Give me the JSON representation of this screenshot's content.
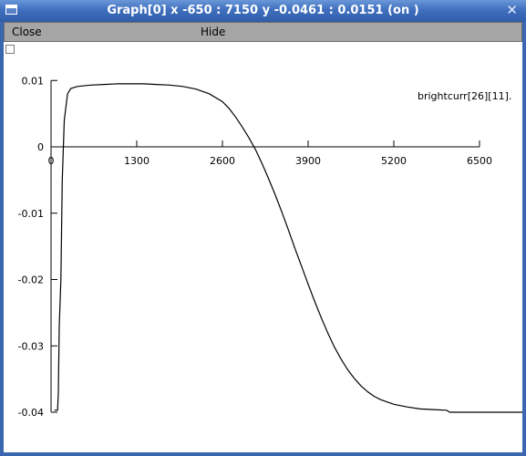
{
  "window": {
    "title": "Graph[0]  x -650 : 7150  y -0.0461 : 0.0151 (on )",
    "icon": "window-menu-icon",
    "close_icon": "close-icon",
    "colors": {
      "titlebar": "#3f6fbe",
      "menubar": "#a5a5a5"
    }
  },
  "menubar": {
    "close_label": "Close",
    "hide_label": "Hide"
  },
  "chart_data": {
    "type": "line",
    "title": "",
    "xlabel": "",
    "ylabel": "",
    "xlim": [
      -650,
      7150
    ],
    "ylim": [
      -0.0461,
      0.0151
    ],
    "x_ticks": [
      0,
      1300,
      2600,
      3900,
      5200,
      6500
    ],
    "x_tick_labels": [
      "0",
      "1300",
      "2600",
      "3900",
      "5200",
      "6500"
    ],
    "y_ticks": [
      0.01,
      0,
      -0.01,
      -0.02,
      -0.03,
      -0.04
    ],
    "y_tick_labels": [
      "0.01",
      "0",
      "-0.01",
      "-0.02",
      "-0.03",
      "-0.04"
    ],
    "grid": false,
    "series": [
      {
        "name": "brightcurr[26][11].",
        "x": [
          50,
          80,
          100,
          110,
          125,
          150,
          170,
          200,
          250,
          300,
          400,
          600,
          800,
          1000,
          1200,
          1400,
          1600,
          1800,
          2000,
          2200,
          2400,
          2600,
          2700,
          2800,
          2900,
          3000,
          3100,
          3200,
          3300,
          3400,
          3500,
          3600,
          3700,
          3800,
          3900,
          4000,
          4100,
          4200,
          4300,
          4400,
          4500,
          4600,
          4700,
          4800,
          4900,
          5000,
          5200,
          5400,
          5600,
          5800,
          6000,
          6050,
          6500,
          7150
        ],
        "y": [
          -0.0397,
          -0.0397,
          -0.0397,
          -0.037,
          -0.027,
          -0.02,
          -0.005,
          0.004,
          0.008,
          0.0088,
          0.0091,
          0.0093,
          0.0094,
          0.0095,
          0.0095,
          0.0095,
          0.0094,
          0.0093,
          0.0091,
          0.0087,
          0.008,
          0.0068,
          0.0058,
          0.0045,
          0.003,
          0.0014,
          -0.0004,
          -0.0025,
          -0.0048,
          -0.0072,
          -0.0098,
          -0.0125,
          -0.0153,
          -0.018,
          -0.0207,
          -0.0233,
          -0.0258,
          -0.0281,
          -0.0302,
          -0.032,
          -0.0336,
          -0.0349,
          -0.036,
          -0.0369,
          -0.0376,
          -0.0381,
          -0.0388,
          -0.0392,
          -0.0395,
          -0.0396,
          -0.0397,
          -0.04,
          -0.04,
          -0.04
        ]
      }
    ]
  }
}
